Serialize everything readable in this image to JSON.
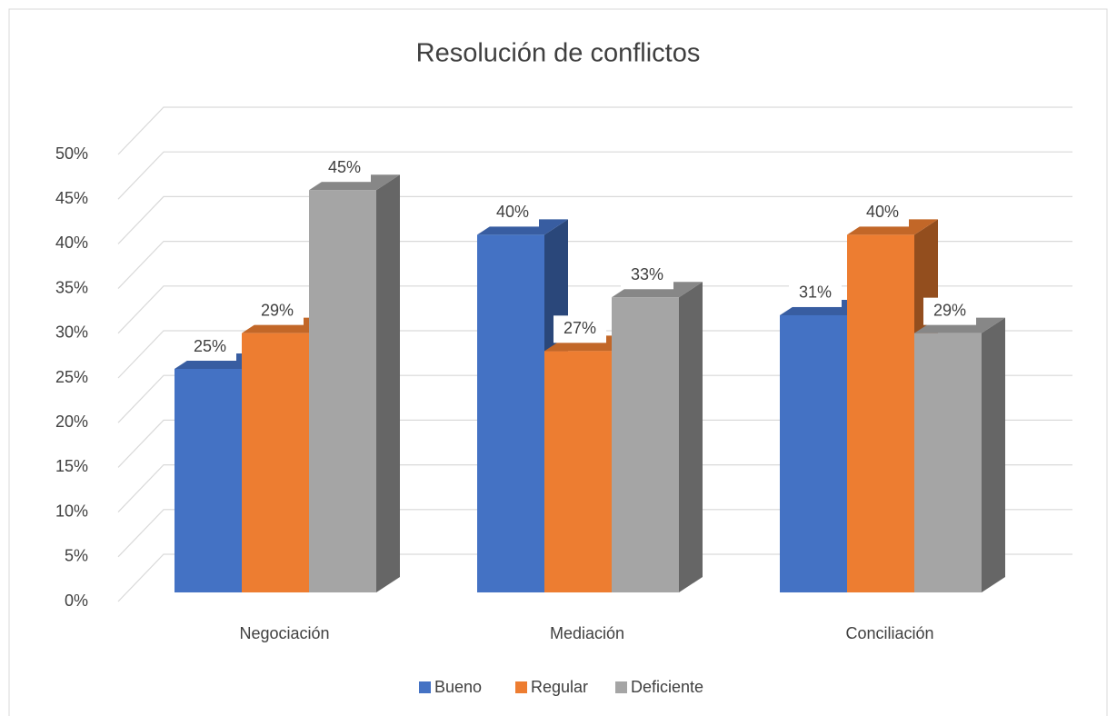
{
  "chart_data": {
    "type": "bar3d",
    "title": "Resolución de conflictos",
    "categories": [
      "Negociación",
      "Mediación",
      "Conciliación"
    ],
    "series": [
      {
        "name": "Bueno",
        "color": "#4472c4",
        "values": [
          25,
          40,
          31
        ],
        "value_labels": [
          "25%",
          "40%",
          "31%"
        ]
      },
      {
        "name": "Regular",
        "color": "#ed7d31",
        "values": [
          29,
          27,
          40
        ],
        "value_labels": [
          "29%",
          "27%",
          "40%"
        ]
      },
      {
        "name": "Deficiente",
        "color": "#a5a5a5",
        "values": [
          45,
          33,
          29
        ],
        "value_labels": [
          "45%",
          "33%",
          "29%"
        ]
      }
    ],
    "ylim": [
      0,
      50
    ],
    "yticks": [
      {
        "value": 0,
        "label": "0%"
      },
      {
        "value": 5,
        "label": "5%"
      },
      {
        "value": 10,
        "label": "10%"
      },
      {
        "value": 15,
        "label": "15%"
      },
      {
        "value": 20,
        "label": "20%"
      },
      {
        "value": 25,
        "label": "25%"
      },
      {
        "value": 30,
        "label": "30%"
      },
      {
        "value": 35,
        "label": "35%"
      },
      {
        "value": 40,
        "label": "40%"
      },
      {
        "value": 45,
        "label": "45%"
      },
      {
        "value": 50,
        "label": "50%"
      }
    ],
    "grid": true,
    "legend": "bottom"
  }
}
